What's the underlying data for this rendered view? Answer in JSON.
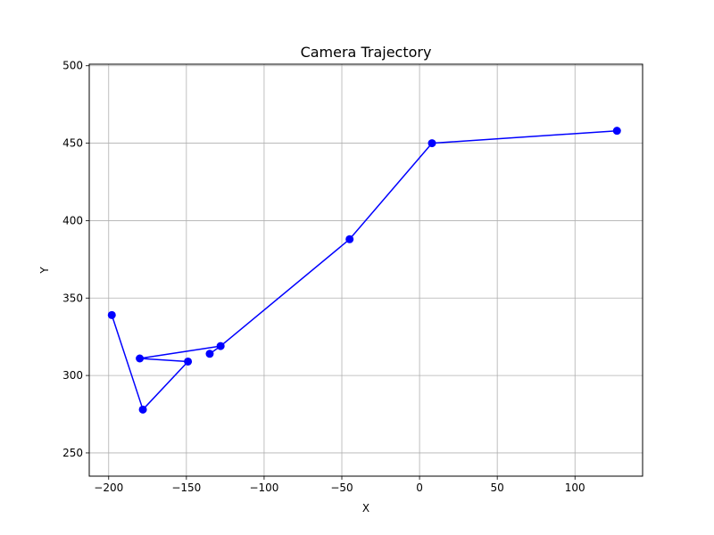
{
  "chart_data": {
    "type": "line",
    "title": "Camera Trajectory",
    "xlabel": "X",
    "ylabel": "Y",
    "xlim": [
      -212.5,
      143.5
    ],
    "ylim": [
      235,
      501
    ],
    "grid": true,
    "marker": "circle",
    "color": "#0000ff",
    "xticks": [
      -200,
      -150,
      -100,
      -50,
      0,
      50,
      100
    ],
    "xtick_labels": [
      "−200",
      "−150",
      "−100",
      "−50",
      "0",
      "50",
      "100"
    ],
    "yticks": [
      250,
      300,
      350,
      400,
      450,
      500
    ],
    "ytick_labels": [
      "250",
      "300",
      "350",
      "400",
      "450",
      "500"
    ],
    "series": [
      {
        "x": [
          -198,
          -178,
          -149,
          -180,
          -128,
          -135
        ],
        "y": [
          339,
          278,
          309,
          311,
          319,
          314
        ]
      },
      {
        "x": [
          -128,
          -45,
          8,
          127
        ],
        "y": [
          319,
          388,
          450,
          458
        ]
      }
    ]
  }
}
